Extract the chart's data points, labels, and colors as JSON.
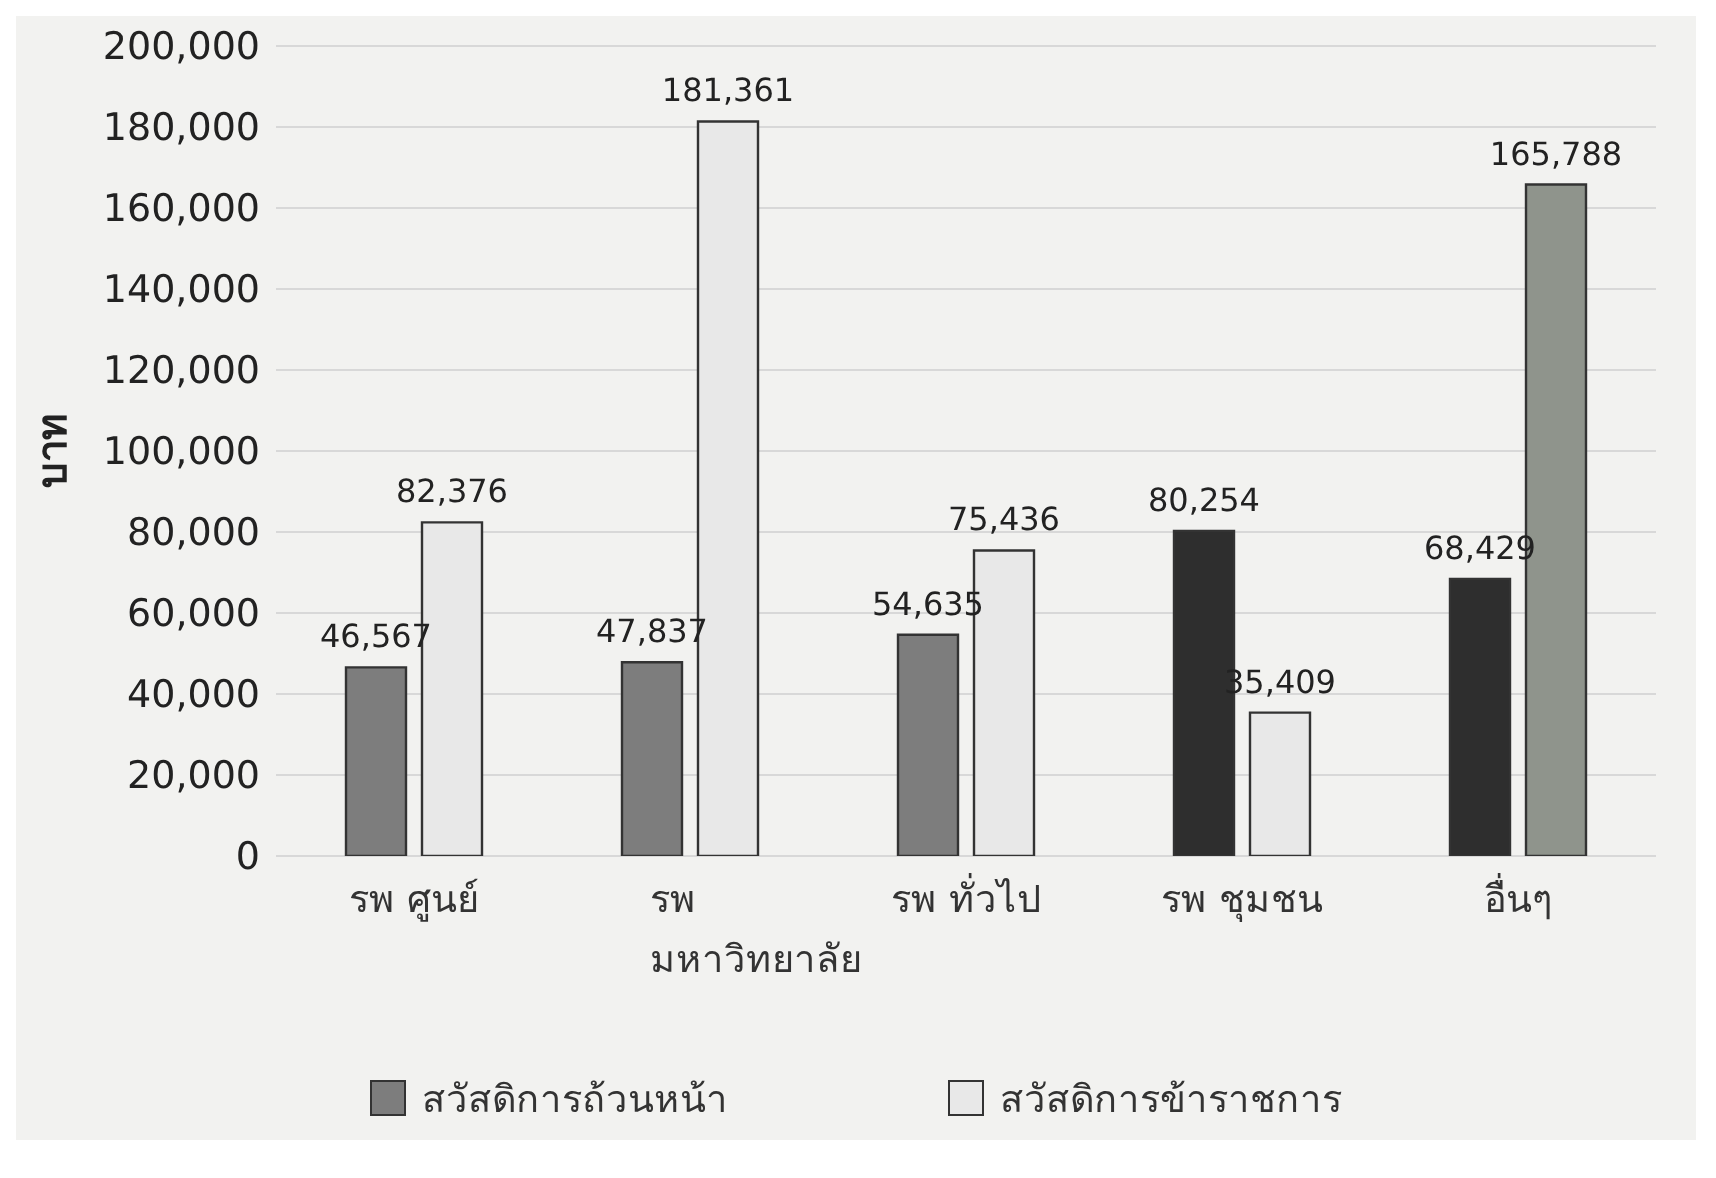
{
  "chart_data": {
    "type": "bar",
    "ylabel": "บาท",
    "categories": [
      "รพ ศูนย์",
      "รพ\nมหาวิทยาลัย",
      "รพ ทั่วไป",
      "รพ ชุมชน",
      "อื่นๆ"
    ],
    "series": [
      {
        "name": "สวัสดิการถ้วนหน้า",
        "color": "#7d7d7d",
        "colors": [
          "#7d7d7d",
          "#7d7d7d",
          "#7d7d7d",
          "#2e2e2e",
          "#2e2e2e"
        ],
        "values": [
          46567,
          47837,
          54635,
          80254,
          68429
        ],
        "value_labels": [
          "46,567",
          "47,837",
          "54,635",
          "80,254",
          "68,429"
        ]
      },
      {
        "name": "สวัสดิการข้าราชการ",
        "color": "#e8e8e8",
        "colors": [
          "#e8e8e8",
          "#e8e8e8",
          "#e8e8e8",
          "#e8e8e8",
          "#8f948c"
        ],
        "values": [
          82376,
          181361,
          75436,
          35409,
          165788
        ],
        "value_labels": [
          "82,376",
          "181,361",
          "75,436",
          "35,409",
          "165,788"
        ]
      }
    ],
    "ylim": [
      0,
      200000
    ],
    "yticks": [
      0,
      {
        "value": 20000,
        "label": "20,000"
      },
      {
        "value": 40000,
        "label": "40,000"
      },
      {
        "value": 60000,
        "label": "60,000"
      },
      {
        "value": 80000,
        "label": "80,000"
      },
      {
        "value": 100000,
        "label": "100,000"
      },
      {
        "value": 120000,
        "label": "120,000"
      },
      {
        "value": 140000,
        "label": "140,000"
      },
      {
        "value": 160000,
        "label": "160,000"
      },
      {
        "value": 180000,
        "label": "180,000"
      },
      {
        "value": 200000,
        "label": "200,000"
      }
    ],
    "grid": "y",
    "legend": "bottom"
  }
}
